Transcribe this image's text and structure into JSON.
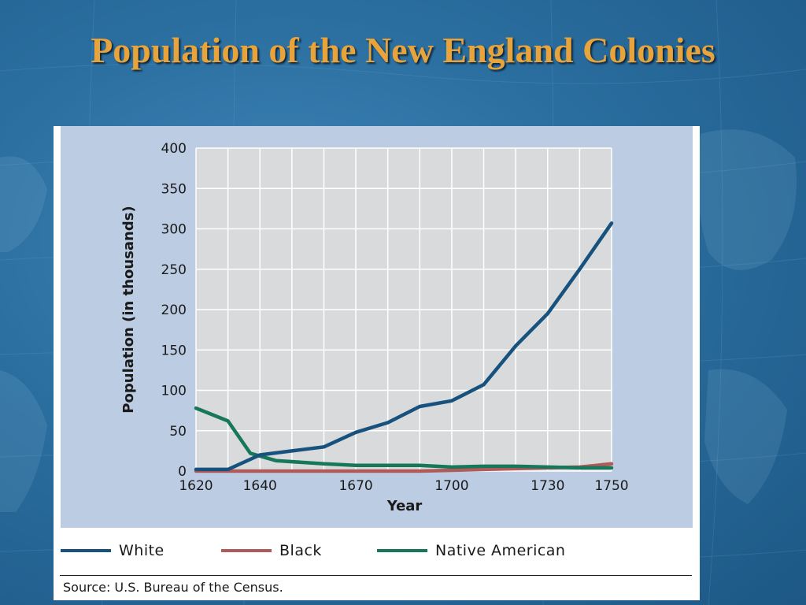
{
  "slide": {
    "title": "Population of the New England Colonies"
  },
  "colors": {
    "title": "#e8a33a",
    "plot_bg": "#d9dadb",
    "panel_bg": "#bccde3",
    "white_series": "#17527e",
    "black_series": "#b15a5a",
    "native_series": "#17775a"
  },
  "chart_data": {
    "type": "line",
    "title": "",
    "xlabel": "Year",
    "ylabel": "Population (in thousands)",
    "xlim": [
      1620,
      1750
    ],
    "ylim": [
      0,
      400
    ],
    "x_ticks": [
      1620,
      1640,
      1670,
      1700,
      1730,
      1750
    ],
    "y_ticks": [
      0,
      50,
      100,
      150,
      200,
      250,
      300,
      350,
      400
    ],
    "grid": true,
    "legend_position": "bottom",
    "series": [
      {
        "name": "White",
        "color": "#17527e",
        "points": [
          [
            1620,
            2
          ],
          [
            1630,
            2
          ],
          [
            1640,
            20
          ],
          [
            1650,
            25
          ],
          [
            1660,
            30
          ],
          [
            1670,
            48
          ],
          [
            1680,
            60
          ],
          [
            1690,
            80
          ],
          [
            1700,
            87
          ],
          [
            1710,
            107
          ],
          [
            1720,
            155
          ],
          [
            1730,
            195
          ],
          [
            1740,
            250
          ],
          [
            1750,
            307
          ]
        ]
      },
      {
        "name": "Black",
        "color": "#b15a5a",
        "points": [
          [
            1620,
            0
          ],
          [
            1630,
            0
          ],
          [
            1640,
            0
          ],
          [
            1650,
            0
          ],
          [
            1660,
            0
          ],
          [
            1670,
            0
          ],
          [
            1680,
            0
          ],
          [
            1690,
            0
          ],
          [
            1700,
            1
          ],
          [
            1710,
            2
          ],
          [
            1720,
            3
          ],
          [
            1730,
            4
          ],
          [
            1740,
            5
          ],
          [
            1750,
            9
          ]
        ]
      },
      {
        "name": "Native American",
        "color": "#17775a",
        "points": [
          [
            1620,
            78
          ],
          [
            1630,
            62
          ],
          [
            1637,
            22
          ],
          [
            1645,
            13
          ],
          [
            1660,
            9
          ],
          [
            1670,
            7
          ],
          [
            1690,
            7
          ],
          [
            1700,
            5
          ],
          [
            1710,
            6
          ],
          [
            1720,
            6
          ],
          [
            1730,
            5
          ],
          [
            1740,
            4
          ],
          [
            1750,
            4
          ]
        ]
      }
    ]
  },
  "legend": {
    "items": [
      {
        "label": "White",
        "color": "#17527e"
      },
      {
        "label": "Black",
        "color": "#b15a5a"
      },
      {
        "label": "Native American",
        "color": "#17775a"
      }
    ]
  },
  "source": "Source: U.S. Bureau of the Census."
}
